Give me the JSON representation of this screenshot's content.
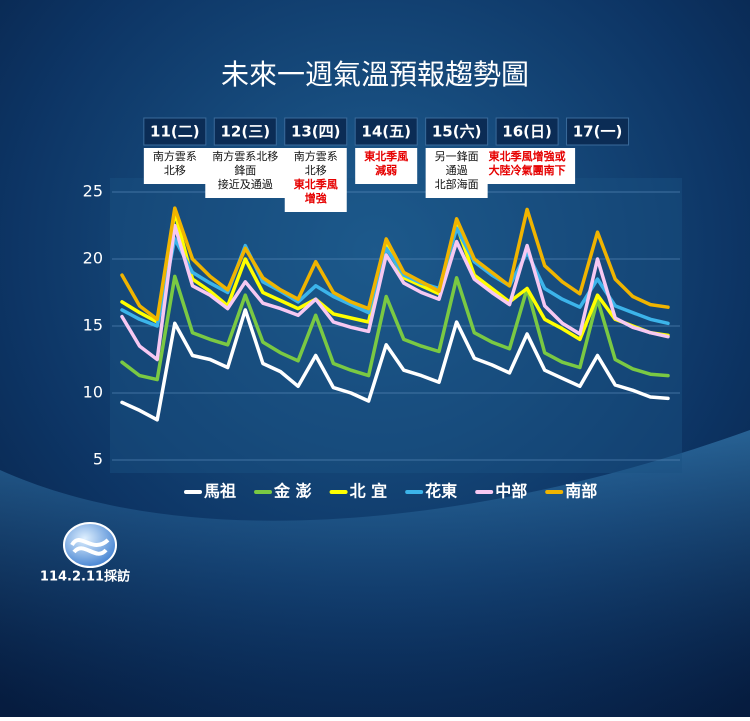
{
  "chart_data": {
    "type": "line",
    "title": "未來一週氣溫預報趨勢圖",
    "days": [
      {
        "label": "11(二)",
        "note": [
          "南方雲系",
          "北移"
        ],
        "note_red": []
      },
      {
        "label": "12(三)",
        "note": [
          "南方雲系北移",
          "鋒面",
          "接近及通過"
        ],
        "note_red": []
      },
      {
        "label": "13(四)",
        "note": [
          "南方雲系",
          "北移"
        ],
        "note_red": [
          "東北季風",
          "增強"
        ]
      },
      {
        "label": "14(五)",
        "note": [],
        "note_red": [
          "東北季風",
          "減弱"
        ]
      },
      {
        "label": "15(六)",
        "note": [
          "另一鋒面",
          "通過",
          "北部海面"
        ],
        "note_red": []
      },
      {
        "label": "16(日)",
        "note": [],
        "note_red": [
          "東北季風增強或",
          "大陸冷氣團南下"
        ]
      },
      {
        "label": "17(一)",
        "note": [],
        "note_red": []
      }
    ],
    "categories": [
      null,
      null,
      null,
      null,
      null,
      null,
      null,
      null,
      null,
      null,
      null,
      null,
      null,
      null,
      null,
      null,
      null,
      null,
      null,
      null,
      null,
      null,
      null,
      null,
      null,
      null,
      null,
      null,
      null,
      null,
      null,
      null
    ],
    "series": [
      {
        "name": "馬祖",
        "color": "#ffffff",
        "values": [
          9.3,
          8.7,
          8.0,
          15.2,
          12.8,
          12.5,
          11.9,
          16.2,
          12.2,
          11.6,
          10.5,
          12.8,
          10.4,
          10.0,
          9.4,
          13.6,
          11.7,
          11.3,
          10.8,
          15.3,
          12.6,
          12.1,
          11.5,
          14.4,
          11.7,
          11.1,
          10.5,
          12.8,
          10.6,
          10.2,
          9.7,
          9.6
        ]
      },
      {
        "name": "金 澎",
        "color": "#7ac943",
        "values": [
          12.3,
          11.3,
          11.0,
          18.7,
          14.5,
          14.0,
          13.6,
          17.3,
          13.8,
          13.0,
          12.4,
          15.8,
          12.2,
          11.7,
          11.3,
          17.2,
          14.0,
          13.5,
          13.1,
          18.6,
          14.5,
          13.8,
          13.3,
          17.8,
          13.0,
          12.3,
          11.9,
          17.0,
          12.5,
          11.8,
          11.4,
          11.3
        ]
      },
      {
        "name": "北 宜",
        "color": "#ffff00",
        "values": [
          16.8,
          16.0,
          15.3,
          23.5,
          18.5,
          17.6,
          16.5,
          20.0,
          17.5,
          16.9,
          16.3,
          17.0,
          15.9,
          15.6,
          15.3,
          21.0,
          18.6,
          18.0,
          17.4,
          22.5,
          18.8,
          17.8,
          16.8,
          17.8,
          15.5,
          14.8,
          14.0,
          17.3,
          15.5,
          15.0,
          14.5,
          14.3
        ]
      },
      {
        "name": "花東",
        "color": "#3cb4ea",
        "values": [
          16.2,
          15.5,
          15.0,
          21.5,
          19.0,
          18.2,
          17.5,
          21.0,
          18.3,
          17.6,
          16.8,
          18.0,
          17.2,
          16.6,
          16.0,
          20.8,
          18.8,
          18.2,
          17.8,
          22.3,
          19.8,
          18.8,
          18.0,
          20.5,
          17.8,
          17.0,
          16.4,
          18.5,
          16.5,
          16.0,
          15.5,
          15.2
        ]
      },
      {
        "name": "中部",
        "color": "#f6c8f2",
        "values": [
          15.7,
          13.5,
          12.5,
          22.5,
          18.0,
          17.3,
          16.3,
          18.3,
          16.7,
          16.3,
          15.8,
          17.0,
          15.3,
          14.9,
          14.6,
          20.3,
          18.2,
          17.5,
          17.0,
          21.3,
          18.5,
          17.5,
          16.6,
          21.0,
          16.5,
          15.2,
          14.4,
          20.0,
          15.6,
          14.9,
          14.5,
          14.2
        ]
      },
      {
        "name": "南部",
        "color": "#f0b400",
        "values": [
          18.8,
          16.5,
          15.5,
          23.8,
          20.0,
          18.7,
          17.7,
          20.8,
          18.6,
          17.7,
          17.0,
          19.8,
          17.5,
          16.8,
          16.3,
          21.5,
          19.0,
          18.3,
          17.6,
          23.0,
          20.0,
          19.0,
          18.0,
          23.7,
          19.5,
          18.3,
          17.4,
          22.0,
          18.5,
          17.2,
          16.6,
          16.4
        ]
      }
    ],
    "ylim": [
      5,
      25
    ],
    "yticks": [
      5,
      10,
      15,
      20,
      25
    ],
    "grid": true,
    "footer": "114.2.11採訪"
  }
}
